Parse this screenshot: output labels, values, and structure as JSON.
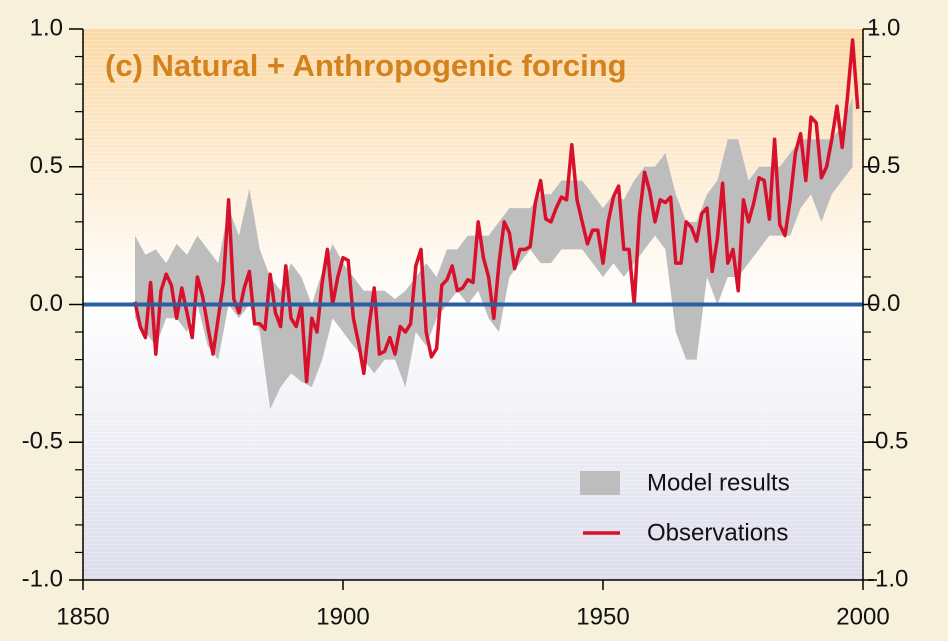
{
  "chart_data": {
    "type": "line",
    "title": "(c) Natural + Anthropogenic forcing",
    "xlim": [
      1850,
      2000
    ],
    "xticks": [
      1850,
      1900,
      1950,
      2000
    ],
    "ylim": [
      -1,
      1
    ],
    "yticks": [
      {
        "value": -1,
        "label": "-1.0"
      },
      {
        "value": -0.5,
        "label": "-0.5"
      },
      {
        "value": 0,
        "label": "0.0"
      },
      {
        "value": 0.5,
        "label": "0.5"
      },
      {
        "value": 1,
        "label": "1.0"
      }
    ],
    "yminorticks": [
      -0.9,
      -0.8,
      -0.7,
      -0.6,
      -0.4,
      -0.3,
      -0.2,
      -0.1,
      0.1,
      0.2,
      0.3,
      0.4,
      0.6,
      0.7,
      0.8,
      0.9
    ],
    "y2lim": [
      -1,
      1
    ],
    "y2ticks": [
      {
        "value": -1,
        "label": "-1.0"
      },
      {
        "value": -0.5,
        "label": "-0.5"
      },
      {
        "value": 0,
        "label": "0.0"
      },
      {
        "value": 0.5,
        "label": "0.5"
      },
      {
        "value": 1,
        "label": "1.0"
      }
    ],
    "hline": {
      "value": 0,
      "color": "#2a5fa0"
    },
    "series": [
      {
        "name": "Model results",
        "color": "#bdbdbd",
        "kind": "band",
        "x": [
          1860,
          1862,
          1864,
          1866,
          1868,
          1870,
          1872,
          1874,
          1876,
          1878,
          1880,
          1882,
          1884,
          1886,
          1888,
          1890,
          1892,
          1894,
          1896,
          1898,
          1900,
          1902,
          1904,
          1906,
          1908,
          1910,
          1912,
          1914,
          1916,
          1918,
          1920,
          1922,
          1924,
          1926,
          1928,
          1930,
          1932,
          1934,
          1936,
          1938,
          1940,
          1942,
          1944,
          1946,
          1948,
          1950,
          1952,
          1954,
          1956,
          1958,
          1960,
          1962,
          1964,
          1966,
          1968,
          1970,
          1972,
          1974,
          1976,
          1978,
          1980,
          1982,
          1984,
          1986,
          1988,
          1990,
          1992,
          1994,
          1996,
          1998
        ],
        "upper": [
          0.25,
          0.18,
          0.2,
          0.15,
          0.22,
          0.18,
          0.25,
          0.2,
          0.15,
          0.35,
          0.25,
          0.42,
          0.2,
          0.1,
          0.05,
          0.15,
          0.1,
          0.0,
          0.12,
          0.22,
          0.15,
          0.1,
          0.05,
          0.05,
          0.05,
          0.02,
          0.05,
          0.1,
          0.15,
          0.1,
          0.2,
          0.2,
          0.25,
          0.25,
          0.25,
          0.3,
          0.35,
          0.35,
          0.35,
          0.4,
          0.4,
          0.45,
          0.45,
          0.45,
          0.4,
          0.35,
          0.4,
          0.38,
          0.45,
          0.5,
          0.5,
          0.55,
          0.4,
          0.3,
          0.3,
          0.4,
          0.45,
          0.6,
          0.6,
          0.45,
          0.5,
          0.5,
          0.5,
          0.55,
          0.6,
          0.6,
          0.6,
          0.6,
          0.65,
          0.75
        ],
        "lower": [
          -0.05,
          -0.1,
          -0.15,
          -0.05,
          -0.05,
          -0.1,
          0.0,
          -0.15,
          -0.2,
          0.0,
          -0.05,
          0.0,
          -0.1,
          -0.38,
          -0.3,
          -0.25,
          -0.28,
          -0.3,
          -0.2,
          -0.05,
          -0.1,
          -0.15,
          -0.2,
          -0.25,
          -0.2,
          -0.2,
          -0.3,
          -0.1,
          -0.15,
          -0.05,
          0.0,
          0.05,
          0.0,
          0.05,
          -0.05,
          -0.1,
          0.1,
          0.15,
          0.2,
          0.15,
          0.15,
          0.2,
          0.2,
          0.2,
          0.15,
          0.1,
          0.15,
          0.1,
          0.15,
          0.2,
          0.25,
          0.2,
          -0.1,
          -0.2,
          -0.2,
          0.1,
          0.0,
          0.1,
          0.1,
          0.15,
          0.2,
          0.25,
          0.25,
          0.25,
          0.35,
          0.4,
          0.3,
          0.4,
          0.45,
          0.5
        ]
      },
      {
        "name": "Observations",
        "color": "#d8102c",
        "kind": "line",
        "x": [
          1860,
          1861,
          1862,
          1863,
          1864,
          1865,
          1866,
          1867,
          1868,
          1869,
          1870,
          1871,
          1872,
          1873,
          1874,
          1875,
          1876,
          1877,
          1878,
          1879,
          1880,
          1881,
          1882,
          1883,
          1884,
          1885,
          1886,
          1887,
          1888,
          1889,
          1890,
          1891,
          1892,
          1893,
          1894,
          1895,
          1896,
          1897,
          1898,
          1899,
          1900,
          1901,
          1902,
          1903,
          1904,
          1905,
          1906,
          1907,
          1908,
          1909,
          1910,
          1911,
          1912,
          1913,
          1914,
          1915,
          1916,
          1917,
          1918,
          1919,
          1920,
          1921,
          1922,
          1923,
          1924,
          1925,
          1926,
          1927,
          1928,
          1929,
          1930,
          1931,
          1932,
          1933,
          1934,
          1935,
          1936,
          1937,
          1938,
          1939,
          1940,
          1941,
          1942,
          1943,
          1944,
          1945,
          1946,
          1947,
          1948,
          1949,
          1950,
          1951,
          1952,
          1953,
          1954,
          1955,
          1956,
          1957,
          1958,
          1959,
          1960,
          1961,
          1962,
          1963,
          1964,
          1965,
          1966,
          1967,
          1968,
          1969,
          1970,
          1971,
          1972,
          1973,
          1974,
          1975,
          1976,
          1977,
          1978,
          1979,
          1980,
          1981,
          1982,
          1983,
          1984,
          1985,
          1986,
          1987,
          1988,
          1989,
          1990,
          1991,
          1992,
          1993,
          1994,
          1995,
          1996,
          1997,
          1998,
          1999
        ],
        "values": [
          0.01,
          -0.08,
          -0.12,
          0.08,
          -0.18,
          0.05,
          0.11,
          0.07,
          -0.05,
          0.06,
          -0.03,
          -0.12,
          0.1,
          0.03,
          -0.08,
          -0.18,
          -0.05,
          0.08,
          0.38,
          0.02,
          -0.03,
          0.06,
          0.12,
          -0.07,
          -0.07,
          -0.09,
          0.11,
          -0.03,
          -0.08,
          0.14,
          -0.05,
          -0.08,
          0.0,
          -0.28,
          -0.05,
          -0.1,
          0.08,
          0.2,
          0.0,
          0.1,
          0.17,
          0.16,
          -0.05,
          -0.14,
          -0.25,
          -0.08,
          0.06,
          -0.18,
          -0.17,
          -0.12,
          -0.18,
          -0.08,
          -0.1,
          -0.07,
          0.14,
          0.2,
          -0.1,
          -0.19,
          -0.16,
          0.07,
          0.09,
          0.14,
          0.05,
          0.06,
          0.09,
          0.08,
          0.3,
          0.17,
          0.1,
          -0.05,
          0.15,
          0.3,
          0.26,
          0.13,
          0.2,
          0.2,
          0.21,
          0.37,
          0.45,
          0.31,
          0.3,
          0.35,
          0.39,
          0.38,
          0.58,
          0.38,
          0.3,
          0.22,
          0.27,
          0.27,
          0.15,
          0.3,
          0.39,
          0.43,
          0.2,
          0.2,
          0.0,
          0.32,
          0.48,
          0.41,
          0.3,
          0.38,
          0.37,
          0.39,
          0.15,
          0.15,
          0.3,
          0.28,
          0.23,
          0.33,
          0.35,
          0.12,
          0.24,
          0.44,
          0.15,
          0.2,
          0.05,
          0.38,
          0.3,
          0.37,
          0.46,
          0.45,
          0.31,
          0.6,
          0.29,
          0.25,
          0.38,
          0.55,
          0.62,
          0.45,
          0.68,
          0.66,
          0.46,
          0.5,
          0.6,
          0.72,
          0.57,
          0.75,
          0.96,
          0.71
        ]
      }
    ]
  }
}
